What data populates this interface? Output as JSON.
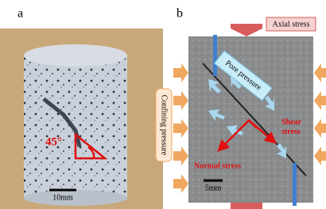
{
  "panels": [
    {
      "label": "a",
      "angle_label": "45°",
      "scale_bar": "10mm"
    },
    {
      "label": "b",
      "axial": "Axial stress",
      "pore": "Pore pressure",
      "confining": "Confining pressure",
      "shear": [
        "Shear",
        "stress"
      ],
      "normal": "Normal stress",
      "scale_bar": "5mm"
    }
  ]
}
